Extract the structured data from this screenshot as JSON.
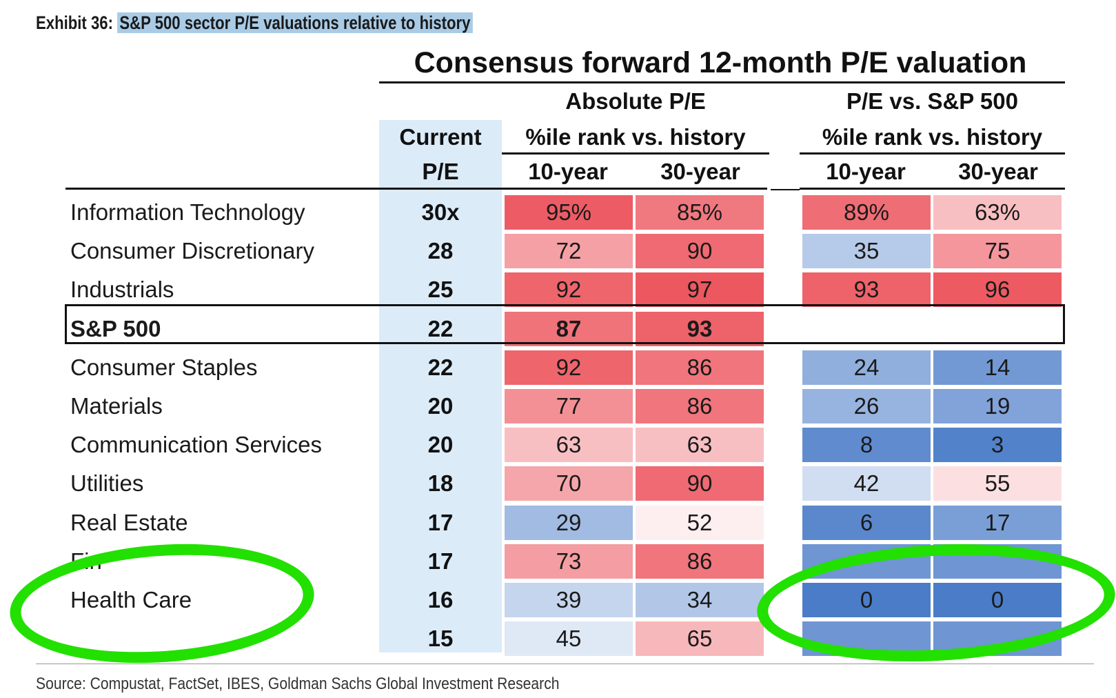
{
  "exhibit": {
    "prefix": "Exhibit 36:",
    "title": "S&P 500 sector P/E valuations relative to history"
  },
  "source": "Source: Compustat, FactSet, IBES, Goldman Sachs Global Investment Research",
  "chart_data": {
    "type": "table",
    "title": "Consensus forward 12-month P/E valuation",
    "headers": {
      "current_line1": "Current",
      "current_line2": "P/E",
      "absolute": "Absolute P/E",
      "relative": "P/E vs. S&P 500",
      "rank": "%ile rank vs. history",
      "ten_year": "10-year",
      "thirty_year": "30-year"
    },
    "rows": [
      {
        "sector": "Information Technology",
        "pe": "30x",
        "abs10": "95%",
        "abs30": "85%",
        "rel10": "89%",
        "rel30": "63%"
      },
      {
        "sector": "Consumer Discretionary",
        "pe": "28",
        "abs10": "72",
        "abs30": "90",
        "rel10": "35",
        "rel30": "75"
      },
      {
        "sector": "Industrials",
        "pe": "25",
        "abs10": "92",
        "abs30": "97",
        "rel10": "93",
        "rel30": "96"
      },
      {
        "sector": "S&P 500",
        "pe": "22",
        "abs10": "87",
        "abs30": "93",
        "rel10": "",
        "rel30": ""
      },
      {
        "sector": "Consumer Staples",
        "pe": "22",
        "abs10": "92",
        "abs30": "86",
        "rel10": "24",
        "rel30": "14"
      },
      {
        "sector": "Materials",
        "pe": "20",
        "abs10": "77",
        "abs30": "86",
        "rel10": "26",
        "rel30": "19"
      },
      {
        "sector": "Communication Services",
        "pe": "20",
        "abs10": "63",
        "abs30": "63",
        "rel10": "8",
        "rel30": "3"
      },
      {
        "sector": "Utilities",
        "pe": "18",
        "abs10": "70",
        "abs30": "90",
        "rel10": "42",
        "rel30": "55"
      },
      {
        "sector": "Real Estate",
        "pe": "17",
        "abs10": "29",
        "abs30": "52",
        "rel10": "6",
        "rel30": "17"
      },
      {
        "sector": "Fin",
        "pe": "17",
        "abs10": "73",
        "abs30": "86",
        "rel10": "",
        "rel30": ""
      },
      {
        "sector": "Health Care",
        "pe": "16",
        "abs10": "39",
        "abs30": "34",
        "rel10": "0",
        "rel30": "0"
      },
      {
        "sector": "",
        "pe": "15",
        "abs10": "45",
        "abs30": "65",
        "rel10": "",
        "rel30": ""
      }
    ],
    "cell_colors": {
      "high": "#ec4f58",
      "mid": "#ffffff",
      "low": "#4a7cc8",
      "relative_low_override": [
        "#3f6dba"
      ]
    },
    "highlight_row": "S&P 500",
    "annotations": {
      "color": "#22e000",
      "circled": [
        "Health Care",
        "P/E vs. S&P 500 Health Care"
      ]
    }
  }
}
